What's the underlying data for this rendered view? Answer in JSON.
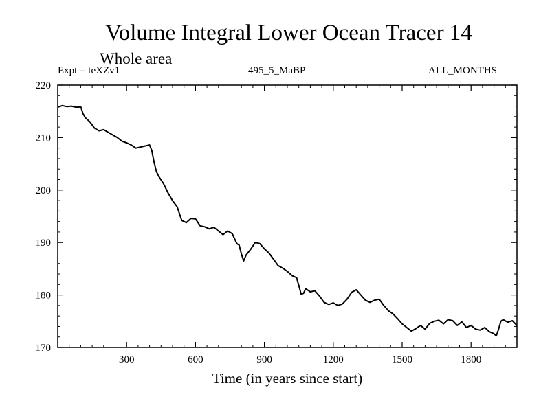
{
  "chart_data": {
    "type": "line",
    "title": "Volume Integral Lower Ocean Tracer 14",
    "subtitle": "Whole area",
    "experiment_label": "Expt = teXZv1",
    "run_label": "495_5_MaBP",
    "months_label": "ALL_MONTHS",
    "xlabel": "Time (in years since start)",
    "ylabel": "",
    "xlim": [
      0,
      2000
    ],
    "ylim": [
      170,
      220
    ],
    "x_ticks": [
      300,
      600,
      900,
      1200,
      1500,
      1800
    ],
    "x_tick_labels": [
      "300",
      "600",
      "900",
      "1200",
      "1500",
      "1800"
    ],
    "x_minor_step": 50,
    "y_ticks": [
      170,
      180,
      190,
      200,
      210,
      220
    ],
    "y_tick_labels": [
      "170",
      "180",
      "190",
      "200",
      "210",
      "220"
    ],
    "y_minor_step": 2,
    "grid": false,
    "series": [
      {
        "name": "Tracer 14",
        "color": "#000000",
        "x": [
          0,
          20,
          40,
          60,
          80,
          90,
          100,
          110,
          120,
          140,
          160,
          180,
          200,
          220,
          240,
          260,
          280,
          300,
          320,
          340,
          360,
          380,
          390,
          400,
          410,
          420,
          430,
          440,
          460,
          480,
          500,
          520,
          540,
          560,
          580,
          600,
          620,
          640,
          660,
          680,
          700,
          720,
          740,
          760,
          780,
          790,
          800,
          810,
          820,
          840,
          860,
          880,
          900,
          920,
          940,
          960,
          980,
          1000,
          1020,
          1040,
          1050,
          1060,
          1070,
          1080,
          1100,
          1120,
          1140,
          1160,
          1180,
          1200,
          1220,
          1240,
          1260,
          1280,
          1300,
          1320,
          1340,
          1360,
          1380,
          1400,
          1420,
          1440,
          1460,
          1480,
          1500,
          1520,
          1540,
          1560,
          1580,
          1600,
          1620,
          1640,
          1660,
          1680,
          1700,
          1720,
          1740,
          1760,
          1780,
          1800,
          1820,
          1840,
          1860,
          1880,
          1900,
          1910,
          1920,
          1930,
          1940,
          1960,
          1980,
          2000
        ],
        "values": [
          215.8,
          216.1,
          215.9,
          216.0,
          215.8,
          215.8,
          215.9,
          214.6,
          213.8,
          213.0,
          211.8,
          211.3,
          211.5,
          211.0,
          210.5,
          210.0,
          209.3,
          209.0,
          208.6,
          208.0,
          208.2,
          208.4,
          208.5,
          208.6,
          207.5,
          205.2,
          203.5,
          202.6,
          201.3,
          199.5,
          198.0,
          196.8,
          194.2,
          193.8,
          194.6,
          194.5,
          193.2,
          193.0,
          192.6,
          192.9,
          192.2,
          191.5,
          192.2,
          191.7,
          189.8,
          189.5,
          187.8,
          186.5,
          187.6,
          188.7,
          190.0,
          189.8,
          188.8,
          188.0,
          186.8,
          185.6,
          185.1,
          184.5,
          183.7,
          183.3,
          181.8,
          180.2,
          180.3,
          181.2,
          180.6,
          180.8,
          179.8,
          178.6,
          178.2,
          178.5,
          178.0,
          178.3,
          179.2,
          180.5,
          181.0,
          180.0,
          179.0,
          178.6,
          179.0,
          179.2,
          178.0,
          177.0,
          176.4,
          175.5,
          174.5,
          173.8,
          173.1,
          173.6,
          174.2,
          173.5,
          174.6,
          175.0,
          175.2,
          174.5,
          175.3,
          175.1,
          174.2,
          174.9,
          173.8,
          174.2,
          173.5,
          173.3,
          173.8,
          173.0,
          172.6,
          172.2,
          173.5,
          175.0,
          175.3,
          174.8,
          175.1,
          174.2
        ]
      }
    ]
  }
}
